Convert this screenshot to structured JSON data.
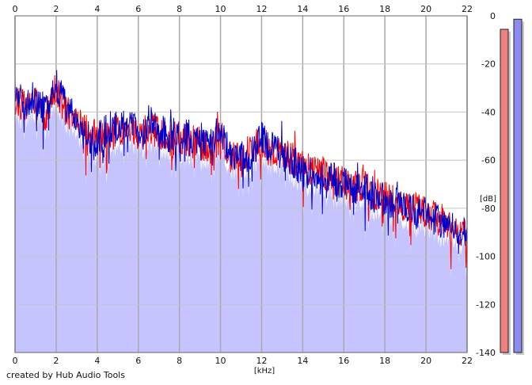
{
  "chart_data": {
    "type": "area",
    "xlabel": "[kHz]",
    "ylabel": "[dB]",
    "xlim": [
      0,
      22
    ],
    "ylim": [
      -140,
      0
    ],
    "x_ticks": [
      0,
      2,
      4,
      6,
      8,
      10,
      12,
      14,
      16,
      18,
      20,
      22
    ],
    "y_ticks": [
      0,
      -20,
      -40,
      -60,
      -80,
      -100,
      -120,
      -140
    ],
    "grid": true,
    "fill_color": "#c6c4ff",
    "series": [
      {
        "color": "#ff0000",
        "x": [
          0,
          0.5,
          1,
          1.5,
          2,
          2.5,
          3,
          3.5,
          4,
          4.5,
          5,
          5.5,
          6,
          6.5,
          7,
          7.5,
          8,
          8.5,
          9,
          9.5,
          10,
          10.5,
          11,
          11.5,
          12,
          12.5,
          13,
          13.5,
          14,
          14.5,
          15,
          15.5,
          16,
          16.5,
          17,
          17.5,
          18,
          18.5,
          19,
          19.5,
          20,
          20.5,
          21,
          21.5,
          22
        ],
        "values": [
          -35,
          -38,
          -36,
          -42,
          -30,
          -40,
          -44,
          -48,
          -50,
          -49,
          -48,
          -47,
          -50,
          -46,
          -49,
          -52,
          -50,
          -52,
          -53,
          -55,
          -50,
          -60,
          -58,
          -56,
          -52,
          -57,
          -57,
          -59,
          -63,
          -65,
          -66,
          -67,
          -69,
          -71,
          -70,
          -74,
          -75,
          -77,
          -79,
          -79,
          -82,
          -84,
          -88,
          -90,
          -91
        ]
      },
      {
        "color": "#0000cc",
        "x": [
          0,
          0.5,
          1,
          1.5,
          2,
          2.5,
          3,
          3.5,
          4,
          4.5,
          5,
          5.5,
          6,
          6.5,
          7,
          7.5,
          8,
          8.5,
          9,
          9.5,
          10,
          10.5,
          11,
          11.5,
          12,
          12.5,
          13,
          13.5,
          14,
          14.5,
          15,
          15.5,
          16,
          16.5,
          17,
          17.5,
          18,
          18.5,
          19,
          19.5,
          20,
          20.5,
          21,
          21.5,
          22
        ],
        "values": [
          -33,
          -36,
          -34,
          -40,
          -28,
          -38,
          -46,
          -50,
          -52,
          -47,
          -46,
          -45,
          -48,
          -44,
          -47,
          -50,
          -48,
          -50,
          -51,
          -54,
          -46,
          -58,
          -59,
          -57,
          -51,
          -55,
          -58,
          -61,
          -64,
          -66,
          -68,
          -68,
          -70,
          -72,
          -72,
          -75,
          -77,
          -78,
          -80,
          -81,
          -83,
          -85,
          -88,
          -89,
          -90
        ]
      }
    ]
  },
  "meters": [
    {
      "color": "#f08080",
      "level": 0.96
    },
    {
      "color": "#8e8cf0",
      "level": 0.99
    }
  ],
  "credit": "created by Hub Audio Tools"
}
